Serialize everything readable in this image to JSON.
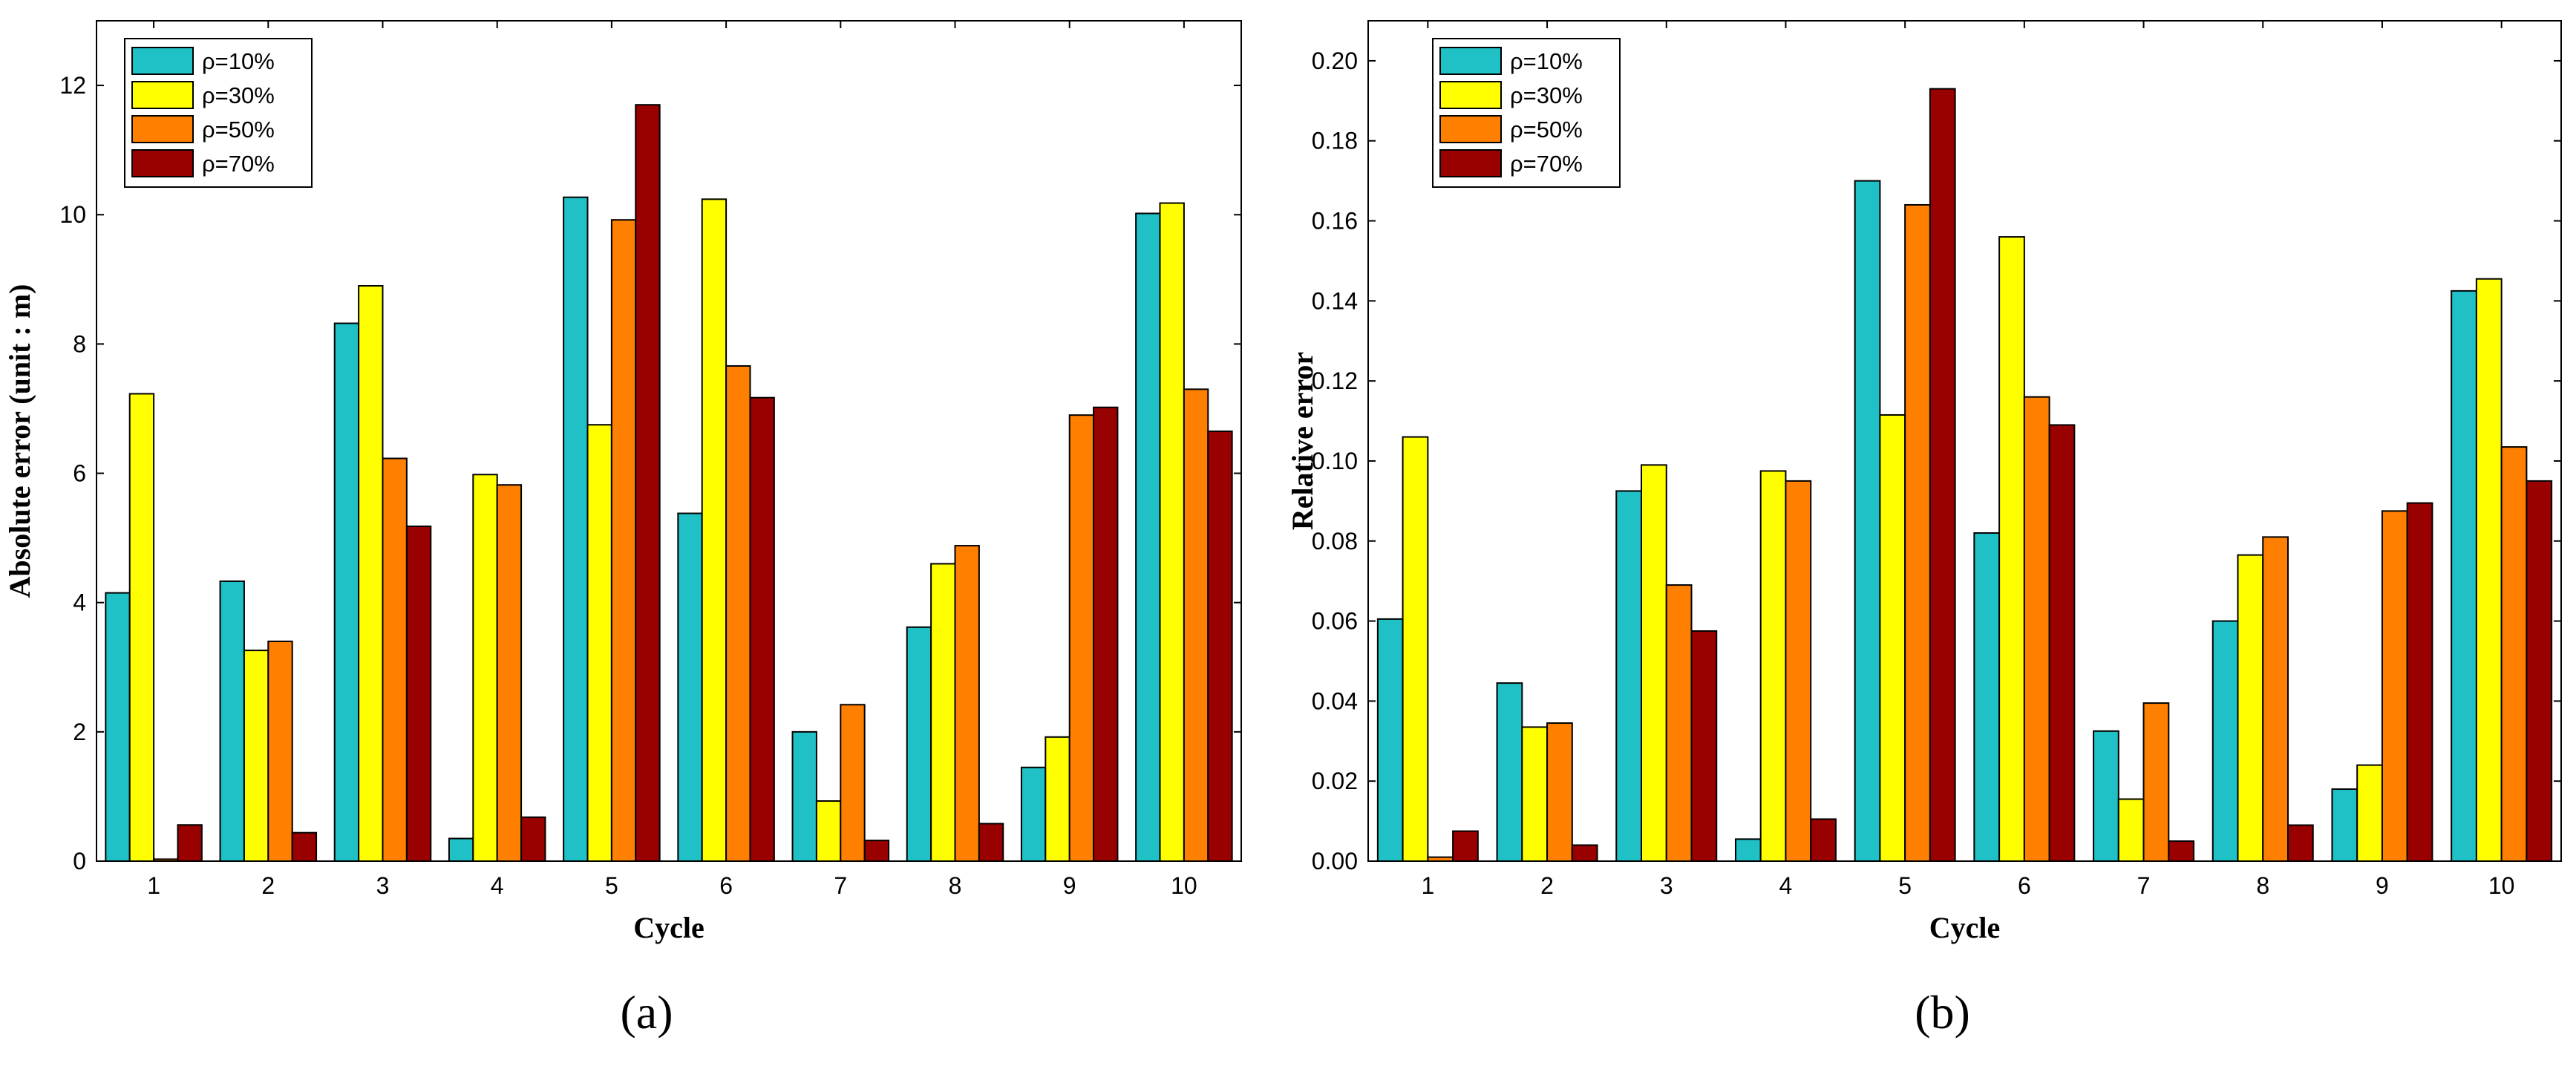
{
  "colors": {
    "s10": "#1fc0c6",
    "s30": "#ffff00",
    "s50": "#ff7f00",
    "s70": "#990000"
  },
  "chart_data": [
    {
      "type": "bar",
      "panel_label": "a",
      "title": "",
      "xlabel": "Cycle",
      "ylabel": "Absolute error (unit : m)",
      "ylim": [
        0,
        13
      ],
      "yticks": [
        0,
        2,
        4,
        6,
        8,
        10,
        12
      ],
      "ytick_labels": [
        "0",
        "2",
        "4",
        "6",
        "8",
        "10",
        "12"
      ],
      "categories": [
        "1",
        "2",
        "3",
        "4",
        "5",
        "6",
        "7",
        "8",
        "9",
        "10"
      ],
      "legend_position": "top-left",
      "series": [
        {
          "name": "ρ=10%",
          "color": "#1fc0c6",
          "values": [
            4.15,
            4.33,
            8.32,
            0.35,
            10.27,
            5.38,
            2.0,
            3.62,
            1.45,
            10.02
          ]
        },
        {
          "name": "ρ=30%",
          "color": "#ffff00",
          "values": [
            7.23,
            3.26,
            8.9,
            5.98,
            6.75,
            10.24,
            0.93,
            4.6,
            1.92,
            10.18
          ]
        },
        {
          "name": "ρ=50%",
          "color": "#ff7f00",
          "values": [
            0.03,
            3.4,
            6.23,
            5.82,
            9.92,
            7.66,
            2.42,
            4.88,
            6.9,
            7.3
          ]
        },
        {
          "name": "ρ=70%",
          "color": "#990000",
          "values": [
            0.56,
            0.44,
            5.18,
            0.68,
            11.7,
            7.17,
            0.32,
            0.58,
            7.02,
            6.65
          ]
        }
      ]
    },
    {
      "type": "bar",
      "panel_label": "b",
      "title": "",
      "xlabel": "Cycle",
      "ylabel": "Relative error",
      "ylim": [
        0,
        0.21
      ],
      "yticks": [
        0,
        0.02,
        0.04,
        0.06,
        0.08,
        0.1,
        0.12,
        0.14,
        0.16,
        0.18,
        0.2
      ],
      "ytick_labels": [
        "0.00",
        "0.02",
        "0.04",
        "0.06",
        "0.08",
        "0.10",
        "0.12",
        "0.14",
        "0.16",
        "0.18",
        "0.20"
      ],
      "categories": [
        "1",
        "2",
        "3",
        "4",
        "5",
        "6",
        "7",
        "8",
        "9",
        "10"
      ],
      "legend_position": "top-left",
      "series": [
        {
          "name": "ρ=10%",
          "color": "#1fc0c6",
          "values": [
            0.0605,
            0.0445,
            0.0925,
            0.0055,
            0.17,
            0.082,
            0.0325,
            0.06,
            0.018,
            0.1425
          ]
        },
        {
          "name": "ρ=30%",
          "color": "#ffff00",
          "values": [
            0.106,
            0.0335,
            0.099,
            0.0975,
            0.1115,
            0.156,
            0.0155,
            0.0765,
            0.024,
            0.1455
          ]
        },
        {
          "name": "ρ=50%",
          "color": "#ff7f00",
          "values": [
            0.001,
            0.0345,
            0.069,
            0.095,
            0.164,
            0.116,
            0.0395,
            0.081,
            0.0875,
            0.1035
          ]
        },
        {
          "name": "ρ=70%",
          "color": "#990000",
          "values": [
            0.0075,
            0.004,
            0.0575,
            0.0105,
            0.193,
            0.109,
            0.005,
            0.009,
            0.0895,
            0.095
          ]
        }
      ]
    }
  ]
}
